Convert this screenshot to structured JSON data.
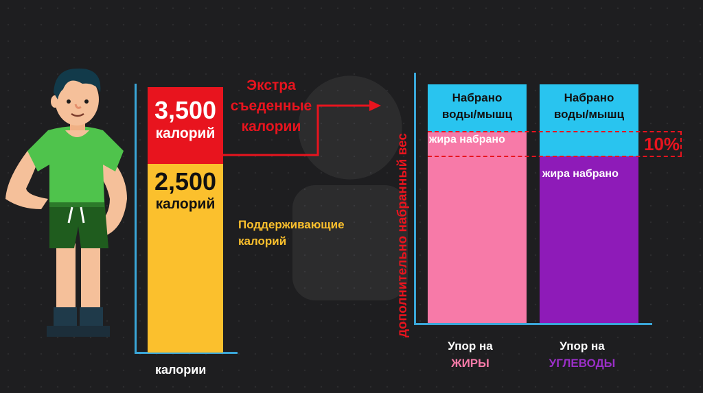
{
  "left_chart": {
    "extra_value": "3,500",
    "extra_unit": "калорий",
    "maint_value": "2,500",
    "maint_unit": "калорий",
    "extra_label_line1": "Экстра",
    "extra_label_line2": "съеденные",
    "extra_label_line3": "калории",
    "maint_label_line1": "Поддерживающие",
    "maint_label_line2": "калорий",
    "x_label": "калории"
  },
  "right_chart": {
    "y_label": "дополнительно набранный вес",
    "bar1_top_line1": "Набрано",
    "bar1_top_line2": "воды/мышц",
    "bar1_fat": "жира набрано",
    "bar2_top_line1": "Набрано",
    "bar2_top_line2": "воды/мышц",
    "bar2_fat": "жира набрано",
    "difference": "10%",
    "cat1_line1": "Упор на",
    "cat1_line2": "ЖИРЫ",
    "cat2_line1": "Упор на",
    "cat2_line2": "УГЛЕВОДЫ"
  },
  "colors": {
    "red": "#e8141e",
    "yellow": "#fbc02d",
    "cyan": "#29c4ef",
    "pink": "#f77aa8",
    "purple": "#8e1bb8",
    "axis": "#3aa6d8"
  },
  "icons": [
    "person-illustration",
    "arrow-right-icon"
  ]
}
